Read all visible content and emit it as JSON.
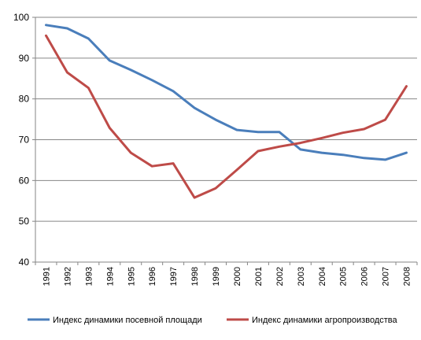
{
  "chart_data": {
    "type": "line",
    "title": "",
    "xlabel": "",
    "ylabel": "",
    "ylim": [
      40,
      100
    ],
    "yticks": [
      40,
      50,
      60,
      70,
      80,
      90,
      100
    ],
    "grid": true,
    "legend_position": "bottom",
    "categories": [
      "1991",
      "1992",
      "1993",
      "1994",
      "1995",
      "1996",
      "1997",
      "1998",
      "1999",
      "2000",
      "2001",
      "2002",
      "2003",
      "2004",
      "2005",
      "2006",
      "2007",
      "2008"
    ],
    "series": [
      {
        "name": "Индекс динамики посевной площади",
        "color": "#4a7ebb",
        "values": [
          98.1,
          97.3,
          94.8,
          89.4,
          87.1,
          84.6,
          81.9,
          77.8,
          74.9,
          72.4,
          71.9,
          71.9,
          67.6,
          66.8,
          66.3,
          65.5,
          65.1,
          66.8
        ]
      },
      {
        "name": "Индекс динамики агропроизводства",
        "color": "#be4b48",
        "values": [
          95.5,
          86.5,
          82.7,
          72.9,
          66.8,
          63.5,
          64.2,
          55.8,
          58.1,
          62.6,
          67.2,
          68.3,
          69.2,
          70.4,
          71.7,
          72.6,
          74.9,
          83.1
        ]
      }
    ]
  }
}
